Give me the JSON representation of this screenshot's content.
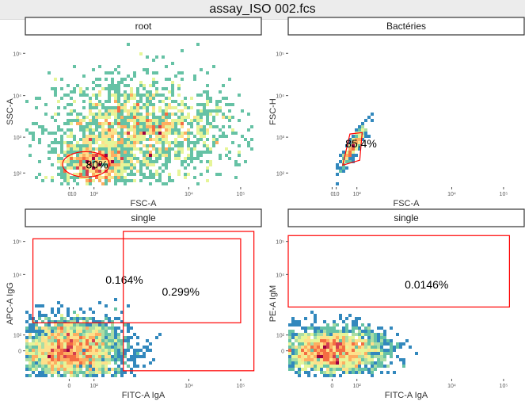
{
  "title": "assay_ISO 002.fcs",
  "palette": [
    "#5e4fa2",
    "#3288bd",
    "#66c2a5",
    "#abdda4",
    "#e6f598",
    "#fee08b",
    "#fdae61",
    "#f46d43",
    "#d53e4f",
    "#9e0142"
  ],
  "gate_color": "#ff0000",
  "chart_data": [
    {
      "type": "scatter",
      "panel_title": "root",
      "xlabel": "FSC-A",
      "ylabel": "SSC-A",
      "x_ticks": [
        {
          "label": "0",
          "v": 0
        },
        {
          "label": "10",
          "v": 10
        },
        {
          "label": "10²",
          "v": 100
        },
        {
          "label": "10⁴",
          "v": 10000
        },
        {
          "label": "10⁵",
          "v": 100000
        }
      ],
      "y_ticks": [
        {
          "label": "10²",
          "v": 100
        },
        {
          "label": "10³",
          "v": 1000
        },
        {
          "label": "10⁴",
          "v": 10000
        },
        {
          "label": "10⁵",
          "v": 100000
        }
      ],
      "x_range": [
        -300,
        250000
      ],
      "y_range": [
        20,
        250000
      ],
      "clouds": [
        {
          "cx": 95,
          "cy": 180,
          "sx": 0.35,
          "sy": 0.3,
          "n": 520
        },
        {
          "cx": 1000,
          "cy": 1500,
          "sx": 0.9,
          "sy": 0.6,
          "n": 1700
        }
      ],
      "gates": [
        {
          "kind": "ellipse",
          "cx": 55,
          "cy": 190,
          "rx": 0.15,
          "ry": 0.1,
          "label": "80%",
          "label_x": 55,
          "label_y": 190
        }
      ]
    },
    {
      "type": "scatter",
      "panel_title": "Bactéries",
      "xlabel": "FSC-A",
      "ylabel": "FSC-H",
      "x_ticks": [
        {
          "label": "0",
          "v": 0
        },
        {
          "label": "10",
          "v": 10
        },
        {
          "label": "10²",
          "v": 100
        },
        {
          "label": "10⁴",
          "v": 10000
        },
        {
          "label": "10⁵",
          "v": 100000
        }
      ],
      "y_ticks": [
        {
          "label": "10²",
          "v": 100
        },
        {
          "label": "10³",
          "v": 1000
        },
        {
          "label": "10⁴",
          "v": 10000
        },
        {
          "label": "10⁵",
          "v": 100000
        }
      ],
      "x_range": [
        -300,
        250000
      ],
      "y_range": [
        20,
        250000
      ],
      "clouds": [
        {
          "cx": 80,
          "cy": 600,
          "sx": 0.12,
          "sy": 0.25,
          "n": 400,
          "corr": 0.9
        }
      ],
      "gates": [
        {
          "kind": "polygon",
          "points": [
            [
              30,
              180
            ],
            [
              60,
              1200
            ],
            [
              140,
              1300
            ],
            [
              120,
              250
            ]
          ],
          "label": "85.4%",
          "label_x": 40,
          "label_y": 700
        }
      ]
    },
    {
      "type": "scatter",
      "panel_title": "single",
      "xlabel": "FITC-A IgA",
      "ylabel": "APC-A IgG",
      "x_ticks": [
        {
          "label": "0",
          "v": 0
        },
        {
          "label": "10²",
          "v": 100
        },
        {
          "label": "10⁴",
          "v": 10000
        },
        {
          "label": "10⁵",
          "v": 100000
        }
      ],
      "y_ticks": [
        {
          "label": "0",
          "v": 0
        },
        {
          "label": "10²",
          "v": 100
        },
        {
          "label": "10⁴",
          "v": 10000
        },
        {
          "label": "10⁵",
          "v": 100000
        }
      ],
      "x_range": [
        -300,
        250000
      ],
      "y_range": [
        -300,
        250000
      ],
      "clouds": [
        {
          "cx": 0,
          "cy": 0,
          "sx": 0.55,
          "sy": 0.5,
          "n": 2600
        }
      ],
      "gates": [
        {
          "kind": "rect",
          "x0": -200,
          "x1": 100000,
          "y0": 300,
          "y1": 120000,
          "label": "0.164%",
          "label_x": 200,
          "label_y": 7000
        },
        {
          "kind": "rect",
          "x0": 500,
          "x1": 180000,
          "y0": -150,
          "y1": 200000,
          "label": "0.299%",
          "label_x": 3000,
          "label_y": 3000
        }
      ]
    },
    {
      "type": "scatter",
      "panel_title": "single",
      "xlabel": "FITC-A IgA",
      "ylabel": "PE-A IgM",
      "x_ticks": [
        {
          "label": "0",
          "v": 0
        },
        {
          "label": "10²",
          "v": 100
        },
        {
          "label": "10⁴",
          "v": 10000
        },
        {
          "label": "10⁵",
          "v": 100000
        }
      ],
      "y_ticks": [
        {
          "label": "0",
          "v": 0
        },
        {
          "label": "10²",
          "v": 100
        },
        {
          "label": "10⁴",
          "v": 10000
        },
        {
          "label": "10⁵",
          "v": 100000
        }
      ],
      "x_range": [
        -300,
        250000
      ],
      "y_range": [
        -300,
        250000
      ],
      "clouds": [
        {
          "cx": 0,
          "cy": 0,
          "sx": 0.5,
          "sy": 0.35,
          "n": 2200
        }
      ],
      "gates": [
        {
          "kind": "rect",
          "x0": -300,
          "x1": 130000,
          "y0": 1000,
          "y1": 150000,
          "label": "0.0146%",
          "label_x": 1200,
          "label_y": 5000
        }
      ]
    }
  ]
}
